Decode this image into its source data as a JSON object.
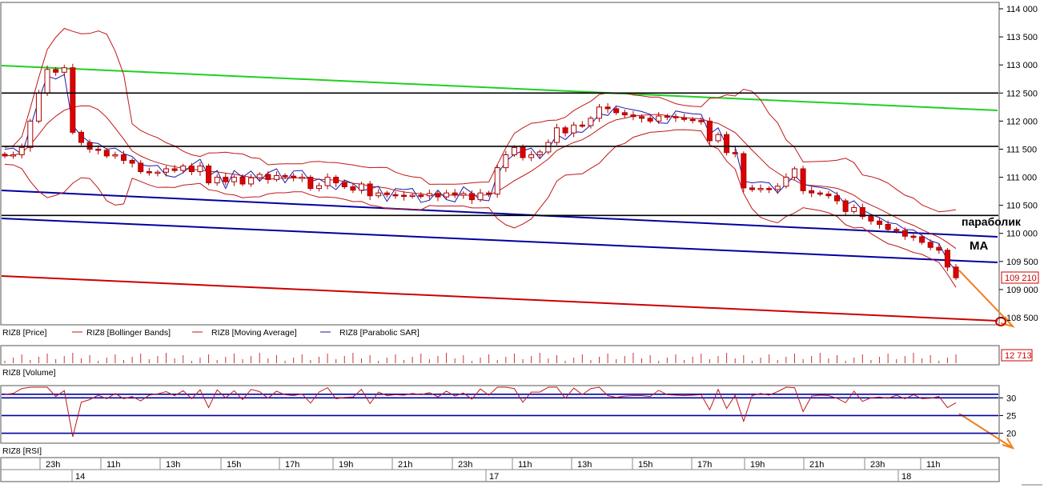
{
  "chart_data": {
    "type": "candlestick",
    "instrument": "RIZ8",
    "price_axis": {
      "ticks": [
        "114 000",
        "113 500",
        "113 000",
        "112 500",
        "112 000",
        "111 500",
        "111 000",
        "110 500",
        "110 000",
        "109 500",
        "109 000",
        "108 500"
      ],
      "ylim": [
        108300,
        114100
      ],
      "last_price_label": "109 210",
      "last_price": 109210
    },
    "volume_label": "12 713",
    "rsi_axis": {
      "ticks": [
        "30",
        "25",
        "20"
      ],
      "levels": [
        31,
        30,
        25,
        20
      ]
    },
    "time_axis": {
      "hour_labels": [
        "23h",
        "11h",
        "13h",
        "15h",
        "17h",
        "19h",
        "21h",
        "23h",
        "11h",
        "13h",
        "15h",
        "17h",
        "19h",
        "21h",
        "23h",
        "11h"
      ],
      "day_labels": [
        "14",
        "17",
        "18"
      ]
    },
    "legend": [
      "RIZ8 [Price]",
      "RIZ8 [Bollinger Bands]",
      "RIZ8 [Moving Average]",
      "RIZ8 [Parabolic SAR]"
    ],
    "panel_labels": {
      "volume": "RIZ8 [Volume]",
      "rsi": "RIZ8 [RSI]"
    },
    "annotations": [
      "параболик",
      "МА"
    ],
    "horizontal_levels": [
      112500,
      111550,
      110320
    ],
    "colors": {
      "up": "#cc0000",
      "down": "#dd0000",
      "bollinger": "#c01818",
      "moving_average": "#c01818",
      "parabolic_sar": "#1a1aaa",
      "trend_green": "#00c000",
      "trend_blue": "#0000a0",
      "trend_red": "#cc0000",
      "forecast": "#f08020"
    },
    "closes": [
      111380,
      111400,
      111530,
      112000,
      112500,
      112920,
      112870,
      112950,
      111800,
      111620,
      111500,
      111480,
      111380,
      111400,
      111300,
      111250,
      111100,
      111080,
      111090,
      111150,
      111120,
      111200,
      111100,
      111200,
      110900,
      111000,
      110920,
      111000,
      110880,
      110990,
      111050,
      110960,
      111030,
      111020,
      110990,
      111000,
      110800,
      110850,
      111000,
      110900,
      110830,
      110770,
      110880,
      110670,
      110720,
      110690,
      110680,
      110660,
      110680,
      110670,
      110710,
      110650,
      110720,
      110680,
      110710,
      110600,
      110720,
      110700,
      111170,
      111400,
      111530,
      111350,
      111400,
      111450,
      111620,
      111880,
      111790,
      111930,
      111920,
      112050,
      112250,
      112220,
      112150,
      112110,
      112080,
      112050,
      112000,
      112090,
      112080,
      112060,
      112030,
      112010,
      112000,
      111650,
      111760,
      111440,
      111420,
      110810,
      110780,
      110800,
      110780,
      110840,
      111000,
      111150,
      110760,
      110720,
      110700,
      110670,
      110580,
      110390,
      110460,
      110300,
      110220,
      110160,
      110070,
      110050,
      109950,
      109940,
      109840,
      109750,
      109700,
      109400,
      109210
    ]
  }
}
